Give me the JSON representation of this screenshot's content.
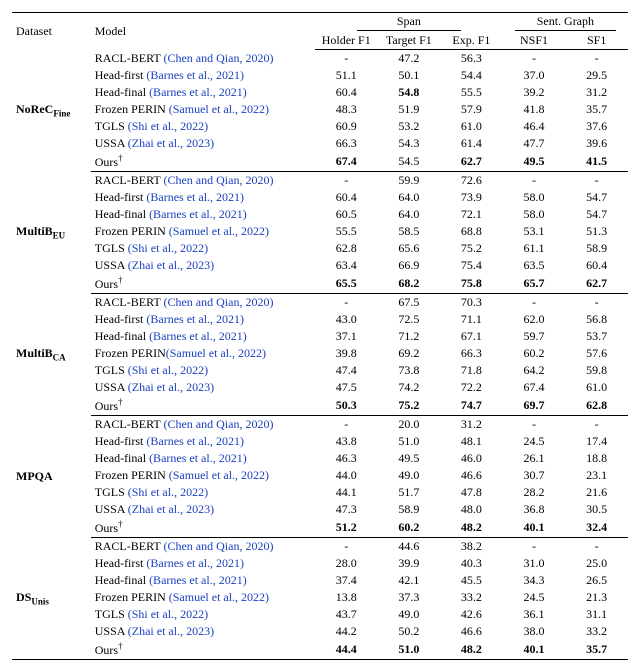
{
  "colors": {
    "text": "#000000",
    "citation": "#1a3fbf",
    "background": "#ffffff",
    "rule": "#000000"
  },
  "typography": {
    "font_family": "Times New Roman",
    "base_fontsize_pt": 10,
    "bold_weight": 700
  },
  "header": {
    "dataset": "Dataset",
    "model": "Model",
    "span_group": "Span",
    "sent_group": "Sent. Graph",
    "span_cols": [
      "Holder F1",
      "Target F1",
      "Exp. F1"
    ],
    "sent_cols": [
      "NSF1",
      "SF1"
    ]
  },
  "datasets": [
    {
      "name_html": "NoReC<sub>Fine</sub>",
      "rows": [
        {
          "model": "RACL-BERT ",
          "cite": "(Chen and Qian, 2020)",
          "hold": "-",
          "tgt": "47.2",
          "exp": "56.3",
          "nsf": "-",
          "sf": "-"
        },
        {
          "model": "Head-first ",
          "cite": "(Barnes et al., 2021)",
          "hold": "51.1",
          "tgt": "50.1",
          "exp": "54.4",
          "nsf": "37.0",
          "sf": "29.5"
        },
        {
          "model": "Head-final ",
          "cite": "(Barnes et al., 2021)",
          "hold": "60.4",
          "tgt": "54.8",
          "tgt_bold": true,
          "exp": "55.5",
          "nsf": "39.2",
          "sf": "31.2"
        },
        {
          "model": "Frozen PERIN ",
          "cite": "(Samuel et al., 2022)",
          "hold": "48.3",
          "tgt": "51.9",
          "exp": "57.9",
          "nsf": "41.8",
          "sf": "35.7"
        },
        {
          "model": "TGLS ",
          "cite": "(Shi et al., 2022)",
          "hold": "60.9",
          "tgt": "53.2",
          "exp": "61.0",
          "nsf": "46.4",
          "sf": "37.6"
        },
        {
          "model": "USSA ",
          "cite": "(Zhai et al., 2023)",
          "hold": "66.3",
          "tgt": "54.3",
          "exp": "61.4",
          "nsf": "47.7",
          "sf": "39.6"
        },
        {
          "model": "Ours",
          "dagger": true,
          "hold": "67.4",
          "hold_bold": true,
          "tgt": "54.5",
          "exp": "62.7",
          "exp_bold": true,
          "nsf": "49.5",
          "nsf_bold": true,
          "sf": "41.5",
          "sf_bold": true
        }
      ]
    },
    {
      "name_html": "MultiB<sub>EU</sub>",
      "rows": [
        {
          "model": "RACL-BERT ",
          "cite": "(Chen and Qian, 2020)",
          "hold": "-",
          "tgt": "59.9",
          "exp": "72.6",
          "nsf": "-",
          "sf": "-"
        },
        {
          "model": "Head-first ",
          "cite": "(Barnes et al., 2021)",
          "hold": "60.4",
          "tgt": "64.0",
          "exp": "73.9",
          "nsf": "58.0",
          "sf": "54.7"
        },
        {
          "model": "Head-final ",
          "cite": "(Barnes et al., 2021)",
          "hold": "60.5",
          "tgt": "64.0",
          "exp": "72.1",
          "nsf": "58.0",
          "sf": "54.7"
        },
        {
          "model": "Frozen PERIN ",
          "cite": "(Samuel et al., 2022)",
          "hold": "55.5",
          "tgt": "58.5",
          "exp": "68.8",
          "nsf": "53.1",
          "sf": "51.3"
        },
        {
          "model": "TGLS ",
          "cite": "(Shi et al., 2022)",
          "hold": "62.8",
          "tgt": "65.6",
          "exp": "75.2",
          "nsf": "61.1",
          "sf": "58.9"
        },
        {
          "model": "USSA ",
          "cite": "(Zhai et al., 2023)",
          "hold": "63.4",
          "tgt": "66.9",
          "exp": "75.4",
          "nsf": "63.5",
          "sf": "60.4"
        },
        {
          "model": "Ours",
          "dagger": true,
          "hold": "65.5",
          "hold_bold": true,
          "tgt": "68.2",
          "tgt_bold": true,
          "exp": "75.8",
          "exp_bold": true,
          "nsf": "65.7",
          "nsf_bold": true,
          "sf": "62.7",
          "sf_bold": true
        }
      ]
    },
    {
      "name_html": "MultiB<sub>CA</sub>",
      "rows": [
        {
          "model": "RACL-BERT ",
          "cite": "(Chen and Qian, 2020)",
          "hold": "-",
          "tgt": "67.5",
          "exp": "70.3",
          "nsf": "-",
          "sf": "-"
        },
        {
          "model": "Head-first ",
          "cite": "(Barnes et al., 2021)",
          "hold": "43.0",
          "tgt": "72.5",
          "exp": "71.1",
          "nsf": "62.0",
          "sf": "56.8"
        },
        {
          "model": "Head-final ",
          "cite": "(Barnes et al., 2021)",
          "hold": "37.1",
          "tgt": "71.2",
          "exp": "67.1",
          "nsf": "59.7",
          "sf": "53.7"
        },
        {
          "model": "Frozen PERIN",
          "cite": "(Samuel et al., 2022)",
          "hold": "39.8",
          "tgt": "69.2",
          "exp": "66.3",
          "nsf": "60.2",
          "sf": "57.6"
        },
        {
          "model": "TGLS ",
          "cite": "(Shi et al., 2022)",
          "hold": "47.4",
          "tgt": "73.8",
          "exp": "71.8",
          "nsf": "64.2",
          "sf": "59.8"
        },
        {
          "model": "USSA ",
          "cite": "(Zhai et al., 2023)",
          "hold": "47.5",
          "tgt": "74.2",
          "exp": "72.2",
          "nsf": "67.4",
          "sf": "61.0"
        },
        {
          "model": "Ours",
          "dagger": true,
          "hold": "50.3",
          "hold_bold": true,
          "tgt": "75.2",
          "tgt_bold": true,
          "exp": "74.7",
          "exp_bold": true,
          "nsf": "69.7",
          "nsf_bold": true,
          "sf": "62.8",
          "sf_bold": true
        }
      ]
    },
    {
      "name_html": "MPQA",
      "rows": [
        {
          "model": "RACL-BERT ",
          "cite": "(Chen and Qian, 2020)",
          "hold": "-",
          "tgt": "20.0",
          "exp": "31.2",
          "nsf": "-",
          "sf": "-"
        },
        {
          "model": "Head-first ",
          "cite": "(Barnes et al., 2021)",
          "hold": "43.8",
          "tgt": "51.0",
          "exp": "48.1",
          "nsf": "24.5",
          "sf": "17.4"
        },
        {
          "model": "Head-final ",
          "cite": "(Barnes et al., 2021)",
          "hold": "46.3",
          "tgt": "49.5",
          "exp": "46.0",
          "nsf": "26.1",
          "sf": "18.8"
        },
        {
          "model": "Frozen PERIN ",
          "cite": "(Samuel et al., 2022)",
          "hold": "44.0",
          "tgt": "49.0",
          "exp": "46.6",
          "nsf": "30.7",
          "sf": "23.1"
        },
        {
          "model": "TGLS ",
          "cite": "(Shi et al., 2022)",
          "hold": "44.1",
          "tgt": "51.7",
          "exp": "47.8",
          "nsf": "28.2",
          "sf": "21.6"
        },
        {
          "model": "USSA ",
          "cite": "(Zhai et al., 2023)",
          "hold": "47.3",
          "tgt": "58.9",
          "exp": "48.0",
          "nsf": "36.8",
          "sf": "30.5"
        },
        {
          "model": "Ours",
          "dagger": true,
          "hold": "51.2",
          "hold_bold": true,
          "tgt": "60.2",
          "tgt_bold": true,
          "exp": "48.2",
          "exp_bold": true,
          "nsf": "40.1",
          "nsf_bold": true,
          "sf": "32.4",
          "sf_bold": true
        }
      ]
    },
    {
      "name_html": "DS<sub>Unis</sub>",
      "rows": [
        {
          "model": "RACL-BERT ",
          "cite": "(Chen and Qian, 2020)",
          "hold": "-",
          "tgt": "44.6",
          "exp": "38.2",
          "nsf": "-",
          "sf": "-"
        },
        {
          "model": "Head-first ",
          "cite": "(Barnes et al., 2021)",
          "hold": "28.0",
          "tgt": "39.9",
          "exp": "40.3",
          "nsf": "31.0",
          "sf": "25.0"
        },
        {
          "model": "Head-final ",
          "cite": "(Barnes et al., 2021)",
          "hold": "37.4",
          "tgt": "42.1",
          "exp": "45.5",
          "nsf": "34.3",
          "sf": "26.5"
        },
        {
          "model": "Frozen PERIN ",
          "cite": "(Samuel et al., 2022)",
          "hold": "13.8",
          "tgt": "37.3",
          "exp": "33.2",
          "nsf": "24.5",
          "sf": "21.3"
        },
        {
          "model": "TGLS ",
          "cite": "(Shi et al., 2022)",
          "hold": "43.7",
          "tgt": "49.0",
          "exp": "42.6",
          "nsf": "36.1",
          "sf": "31.1"
        },
        {
          "model": "USSA ",
          "cite": "(Zhai et al., 2023)",
          "hold": "44.2",
          "tgt": "50.2",
          "exp": "46.6",
          "nsf": "38.0",
          "sf": "33.2"
        },
        {
          "model": "Ours",
          "dagger": true,
          "hold": "44.4",
          "hold_bold": true,
          "tgt": "51.0",
          "tgt_bold": true,
          "exp": "48.2",
          "exp_bold": true,
          "nsf": "40.1",
          "nsf_bold": true,
          "sf": "35.7",
          "sf_bold": true
        }
      ]
    }
  ]
}
